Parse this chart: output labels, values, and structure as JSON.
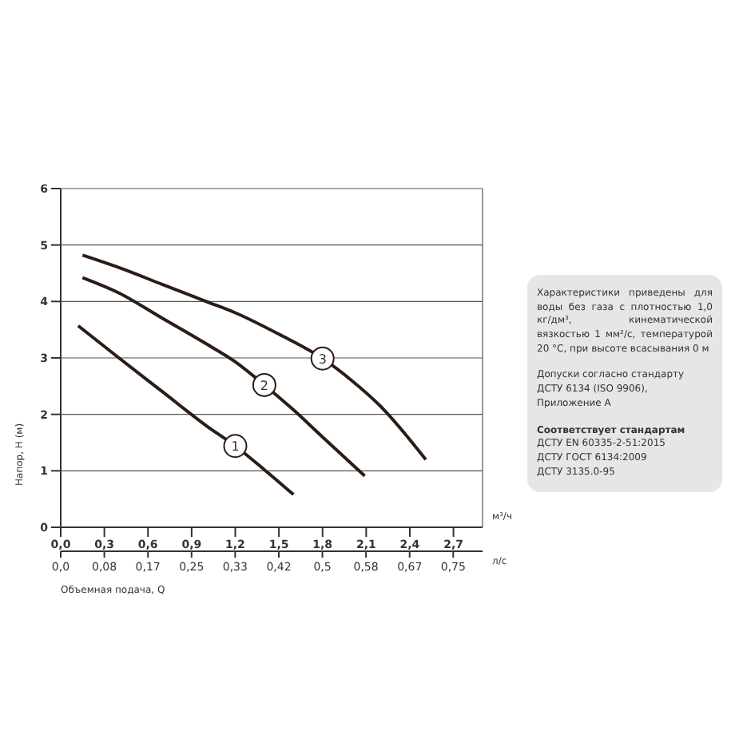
{
  "chart_data": {
    "type": "line",
    "xlabel": "м³/ч",
    "x2label": "л/с",
    "ylabel": "Напор, Н (м)",
    "xlim": [
      0,
      2.9
    ],
    "xticks": [
      {
        "value": 0,
        "label": "0,0"
      },
      {
        "value": 0.3,
        "label": "0,3"
      },
      {
        "value": 0.6,
        "label": "0,6"
      },
      {
        "value": 0.9,
        "label": "0,9"
      },
      {
        "value": 1.2,
        "label": "1,2"
      },
      {
        "value": 1.5,
        "label": "1,5"
      },
      {
        "value": 1.8,
        "label": "1,8"
      },
      {
        "value": 2.1,
        "label": "2,1"
      },
      {
        "value": 2.4,
        "label": "2,4"
      },
      {
        "value": 2.7,
        "label": "2,7"
      }
    ],
    "x2lim": [
      0,
      0.806
    ],
    "x2ticks": [
      {
        "value": 0,
        "label": "0,0"
      },
      {
        "value": 0.0833,
        "label": "0,08"
      },
      {
        "value": 0.1667,
        "label": "0,17"
      },
      {
        "value": 0.25,
        "label": "0,25"
      },
      {
        "value": 0.3333,
        "label": "0,33"
      },
      {
        "value": 0.4167,
        "label": "0,42"
      },
      {
        "value": 0.5,
        "label": "0,5"
      },
      {
        "value": 0.5833,
        "label": "0,58"
      },
      {
        "value": 0.6667,
        "label": "0,67"
      },
      {
        "value": 0.75,
        "label": "0,75"
      }
    ],
    "ylim": [
      0,
      6
    ],
    "yticks": [
      0,
      1,
      2,
      3,
      4,
      5,
      6
    ],
    "grid": true,
    "marker": "none",
    "line_style": "solid",
    "series": [
      {
        "name": "1",
        "color": "#2b1d16",
        "x": [
          0.12,
          0.4,
          0.7,
          1.0,
          1.2,
          1.4,
          1.6
        ],
        "values": [
          3.57,
          3.0,
          2.4,
          1.8,
          1.44,
          1.02,
          0.58
        ]
      },
      {
        "name": "2",
        "color": "#2b1d16",
        "x": [
          0.15,
          0.4,
          0.7,
          1.0,
          1.2,
          1.4,
          1.6,
          1.8,
          2.09
        ],
        "values": [
          4.42,
          4.15,
          3.7,
          3.25,
          2.93,
          2.52,
          2.08,
          1.6,
          0.91
        ]
      },
      {
        "name": "3",
        "color": "#2b1d16",
        "x": [
          0.15,
          0.4,
          0.7,
          1.0,
          1.2,
          1.5,
          1.8,
          2.0,
          2.2,
          2.51
        ],
        "values": [
          4.82,
          4.6,
          4.3,
          4.0,
          3.8,
          3.42,
          2.99,
          2.6,
          2.14,
          1.2
        ]
      }
    ],
    "annotations": [
      "Объемная подача, Q",
      "Характеристики приведены для воды без газа с плотностью 1,0 кг/дм³, кинематической вязкостью 1 мм²/с, температурой 20 °C, при высоте всасывания 0 м",
      "Допуски согласно стандарту",
      "ДСТУ 6134 (ISO 9906),",
      "Приложение А",
      "Соответствует стандартам",
      "ДСТУ EN 60335-2-51:2015",
      "ДСТУ ГОСТ 6134:2009",
      "ДСТУ 3135.0-95"
    ]
  }
}
